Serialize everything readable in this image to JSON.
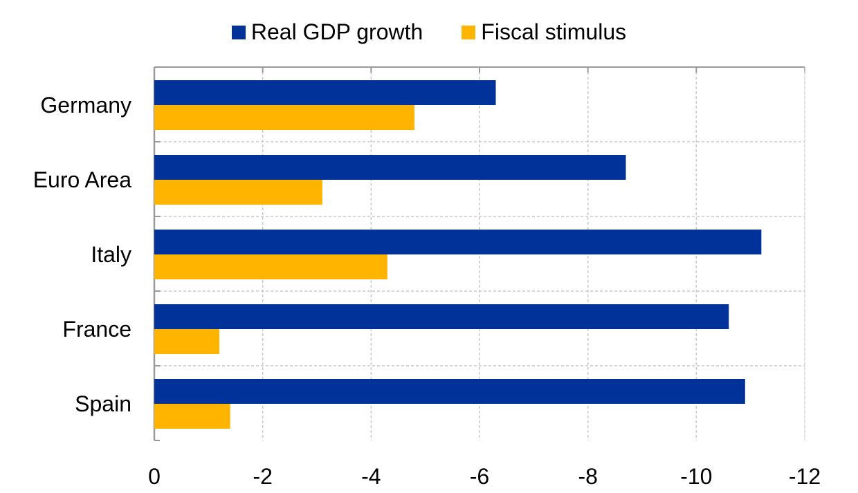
{
  "chart_data": {
    "type": "bar",
    "orientation": "horizontal",
    "categories": [
      "Germany",
      "Euro Area",
      "Italy",
      "France",
      "Spain"
    ],
    "series": [
      {
        "name": "Real GDP growth",
        "color": "#003299",
        "values": [
          -6.3,
          -8.7,
          -11.2,
          -10.6,
          -10.9
        ]
      },
      {
        "name": "Fiscal stimulus",
        "color": "#FFB400",
        "values": [
          -4.8,
          -3.1,
          -4.3,
          -1.2,
          -1.4
        ]
      }
    ],
    "xlim": [
      0,
      -12
    ],
    "xticks": [
      "0",
      "-2",
      "-4",
      "-6",
      "-8",
      "-10",
      "-12"
    ],
    "grid": true,
    "legend_position": "top",
    "title": "",
    "xlabel": "",
    "ylabel": ""
  }
}
